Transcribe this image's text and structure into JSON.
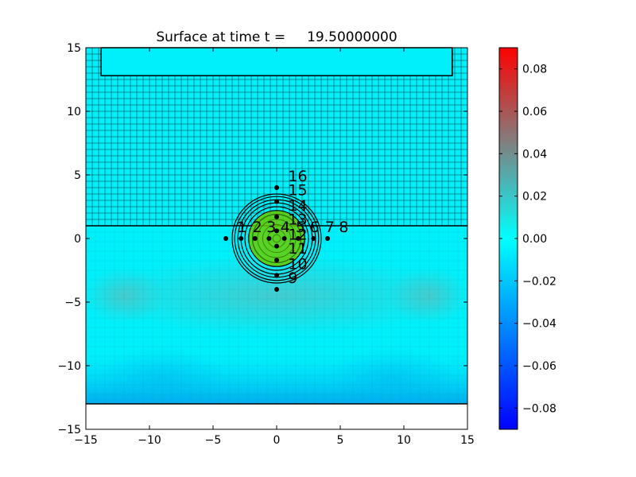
{
  "chart_data": {
    "type": "heatmap",
    "title": "Surface at time t =     19.50000000",
    "xlim": [
      -15,
      15
    ],
    "ylim": [
      -15,
      15
    ],
    "x_ticks": [
      "−15",
      "−10",
      "−5",
      "0",
      "5",
      "10",
      "15"
    ],
    "y_ticks": [
      "−15",
      "−10",
      "−5",
      "0",
      "5",
      "10",
      "15"
    ],
    "x_tick_values": [
      -15,
      -10,
      -5,
      0,
      5,
      10,
      15
    ],
    "y_tick_values": [
      -15,
      -10,
      -5,
      0,
      5,
      10,
      15
    ],
    "domain": {
      "x": [
        -15,
        15
      ],
      "y": [
        -13,
        15
      ]
    },
    "fine_grid_region": {
      "x": [
        -15,
        15
      ],
      "y": [
        1,
        15
      ]
    },
    "coarse_grid_region": {
      "x": [
        -15,
        15
      ],
      "y": [
        -13,
        1
      ]
    },
    "inner_box": {
      "x": [
        -13.8,
        13.8
      ],
      "y": [
        12.8,
        15
      ]
    },
    "grid_spacing_fine": 0.5,
    "grid_spacing_coarse": 0.75,
    "colorbar": {
      "range": [
        -0.09,
        0.09
      ],
      "ticks": [
        "0.08",
        "0.06",
        "0.04",
        "0.02",
        "0.00",
        "−0.02",
        "−0.04",
        "−0.06",
        "−0.08"
      ],
      "tick_values": [
        0.08,
        0.06,
        0.04,
        0.02,
        0.0,
        -0.02,
        -0.04,
        -0.06,
        -0.08
      ],
      "colors": [
        "#0000ff",
        "#0080ff",
        "#00ffff",
        "#808080",
        "#ff0000"
      ]
    },
    "hump": {
      "center": [
        0,
        0
      ],
      "radius": 2.2,
      "color": "#66cc00"
    },
    "contour_radii": [
      1.9,
      2.2,
      2.5,
      2.8,
      3.05,
      3.3,
      3.5
    ],
    "gauges": [
      {
        "id": "1",
        "x": -4,
        "y": 0,
        "label_dx": 0.9,
        "label_dy": 0.5
      },
      {
        "id": "2",
        "x": -2.8,
        "y": 0,
        "label_dx": 0.9,
        "label_dy": 0.5
      },
      {
        "id": "3",
        "x": -1.7,
        "y": 0,
        "label_dx": 0.9,
        "label_dy": 0.5
      },
      {
        "id": "4",
        "x": -0.6,
        "y": 0,
        "label_dx": 0.9,
        "label_dy": 0.5
      },
      {
        "id": "5",
        "x": 0.6,
        "y": 0,
        "label_dx": 0.9,
        "label_dy": 0.5
      },
      {
        "id": "6",
        "x": 1.7,
        "y": 0,
        "label_dx": 0.9,
        "label_dy": 0.5
      },
      {
        "id": "7",
        "x": 2.9,
        "y": 0,
        "label_dx": 0.9,
        "label_dy": 0.5
      },
      {
        "id": "8",
        "x": 4,
        "y": 0,
        "label_dx": 0.9,
        "label_dy": 0.5
      },
      {
        "id": "9",
        "x": 0,
        "y": -4,
        "label_dx": 0.9,
        "label_dy": 0.5
      },
      {
        "id": "10",
        "x": 0,
        "y": -2.9,
        "label_dx": 0.9,
        "label_dy": 0.5
      },
      {
        "id": "11",
        "x": 0,
        "y": -1.7,
        "label_dx": 0.9,
        "label_dy": 0.5
      },
      {
        "id": "12",
        "x": 0,
        "y": -0.6,
        "label_dx": 0.9,
        "label_dy": 0.5
      },
      {
        "id": "13",
        "x": 0,
        "y": 0.6,
        "label_dx": 0.9,
        "label_dy": 0.5
      },
      {
        "id": "14",
        "x": 0,
        "y": 1.7,
        "label_dx": 0.9,
        "label_dy": 0.5
      },
      {
        "id": "15",
        "x": 0,
        "y": 2.9,
        "label_dx": 0.9,
        "label_dy": 0.5
      },
      {
        "id": "16",
        "x": 0,
        "y": 4,
        "label_dx": 0.9,
        "label_dy": 0.5
      }
    ]
  }
}
